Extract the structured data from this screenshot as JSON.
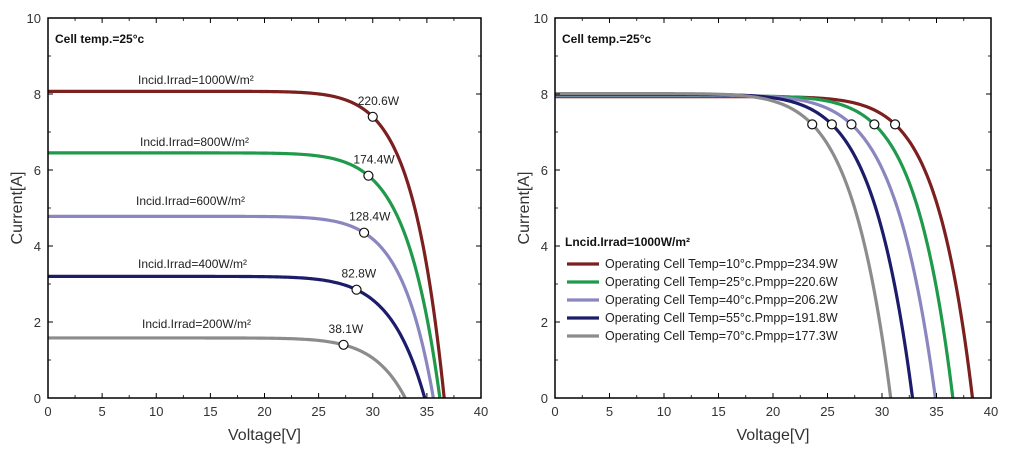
{
  "chart_data": [
    {
      "type": "line",
      "xlabel": "Voltage[V]",
      "ylabel": "Current[A]",
      "xlim": [
        0,
        40
      ],
      "ylim": [
        0,
        10
      ],
      "xticks": [
        "0",
        "5",
        "10",
        "15",
        "20",
        "25",
        "30",
        "35",
        "40"
      ],
      "yticks": [
        "0",
        "2",
        "4",
        "6",
        "8",
        "10"
      ],
      "note": "Cell temp.=25°c",
      "series": [
        {
          "name": "Incid.Irrad=1000W/m²",
          "color": "#7b1f1f",
          "isc": 8.07,
          "voc": 36.6,
          "mpp": {
            "v": 30.0,
            "i": 7.4,
            "label": "220.6W"
          }
        },
        {
          "name": "Incid.Irrad=800W/m²",
          "color": "#1e9a4a",
          "isc": 6.45,
          "voc": 36.2,
          "mpp": {
            "v": 29.6,
            "i": 5.85,
            "label": "174.4W"
          }
        },
        {
          "name": "Incid.Irrad=600W/m²",
          "color": "#8a86c0",
          "isc": 4.78,
          "voc": 35.6,
          "mpp": {
            "v": 29.2,
            "i": 4.35,
            "label": "128.4W"
          }
        },
        {
          "name": "Incid.Irrad=400W/m²",
          "color": "#1c1c6a",
          "isc": 3.2,
          "voc": 34.8,
          "mpp": {
            "v": 28.5,
            "i": 2.85,
            "label": "82.8W"
          }
        },
        {
          "name": "Incid.Irrad=200W/m²",
          "color": "#8c8c8c",
          "isc": 1.58,
          "voc": 33.0,
          "mpp": {
            "v": 27.3,
            "i": 1.4,
            "label": "38.1W"
          }
        }
      ]
    },
    {
      "type": "line",
      "xlabel": "Voltage[V]",
      "ylabel": "Current[A]",
      "xlim": [
        0,
        40
      ],
      "ylim": [
        0,
        10
      ],
      "xticks": [
        "0",
        "5",
        "10",
        "15",
        "20",
        "25",
        "30",
        "35",
        "40"
      ],
      "yticks": [
        "0",
        "2",
        "4",
        "6",
        "8",
        "10"
      ],
      "note": "Cell temp.=25°c",
      "legend_title": "Lncid.Irrad=1000W/m²",
      "legend_position": "center-left",
      "series": [
        {
          "name": "Operating Cell Temp=10°c.Pmpp=234.9W",
          "color": "#7b1f1f",
          "isc": 7.93,
          "voc": 38.3,
          "mpp": {
            "v": 31.2,
            "i": 7.2
          }
        },
        {
          "name": "Operating Cell Temp=25°c.Pmpp=220.6W",
          "color": "#1e9a4a",
          "isc": 7.95,
          "voc": 36.5,
          "mpp": {
            "v": 29.3,
            "i": 7.2
          }
        },
        {
          "name": "Operating Cell Temp=40°c.Pmpp=206.2W",
          "color": "#8a86c0",
          "isc": 7.97,
          "voc": 34.9,
          "mpp": {
            "v": 27.2,
            "i": 7.2
          }
        },
        {
          "name": "Operating Cell Temp=55°c.Pmpp=191.8W",
          "color": "#1c1c6a",
          "isc": 7.99,
          "voc": 32.8,
          "mpp": {
            "v": 25.4,
            "i": 7.2
          }
        },
        {
          "name": "Operating Cell Temp=70°c.Pmpp=177.3W",
          "color": "#8c8c8c",
          "isc": 8.01,
          "voc": 30.8,
          "mpp": {
            "v": 23.6,
            "i": 7.2
          }
        }
      ]
    }
  ]
}
